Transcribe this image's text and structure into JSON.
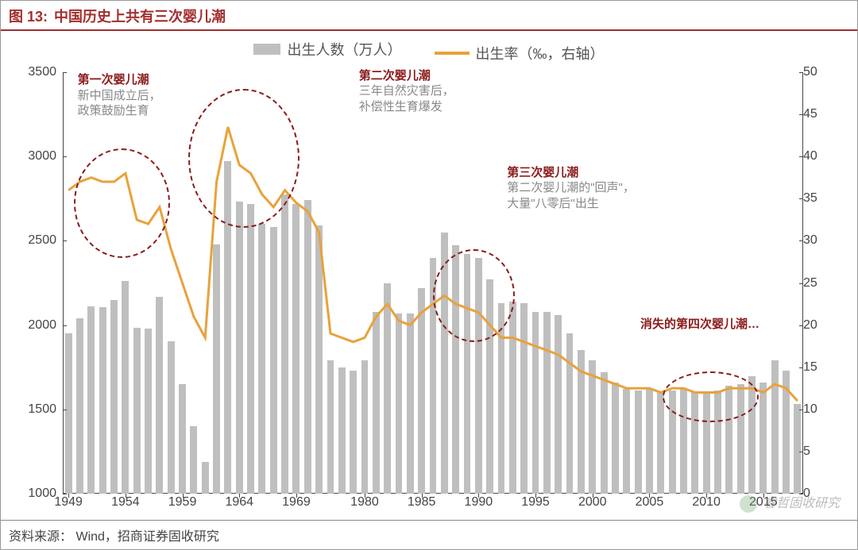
{
  "header": {
    "fig_label": "图 13:",
    "fig_title": "中国历史上共有三次婴儿潮"
  },
  "legend": {
    "bar_label": "出生人数（万人）",
    "line_label": "出生率（‰，右轴）"
  },
  "chart": {
    "type": "bar+line",
    "background_color": "#ffffff",
    "bar_color": "#bfbfbf",
    "line_color": "#e8a23a",
    "line_width": 3,
    "axis_color": "#444444",
    "y_left": {
      "min": 1000,
      "max": 3500,
      "step": 500
    },
    "y_right": {
      "min": 0,
      "max": 50,
      "step": 5
    },
    "x_start": 1949,
    "x_end": 2018,
    "x_ticks": [
      1949,
      1954,
      1959,
      1964,
      1969,
      1980,
      1985,
      1990,
      1995,
      2000,
      2005,
      2010,
      2015
    ],
    "years": [
      1949,
      1950,
      1951,
      1952,
      1953,
      1954,
      1955,
      1956,
      1957,
      1958,
      1959,
      1960,
      1961,
      1962,
      1963,
      1964,
      1965,
      1966,
      1967,
      1968,
      1969,
      1970,
      1971,
      1977,
      1978,
      1979,
      1980,
      1981,
      1982,
      1983,
      1984,
      1985,
      1986,
      1987,
      1988,
      1989,
      1990,
      1991,
      1992,
      1993,
      1994,
      1995,
      1996,
      1997,
      1998,
      1999,
      2000,
      2001,
      2002,
      2003,
      2004,
      2005,
      2006,
      2007,
      2008,
      2009,
      2010,
      2011,
      2012,
      2013,
      2014,
      2015,
      2016,
      2017,
      2018
    ],
    "births": [
      1950,
      2042,
      2110,
      2105,
      2151,
      2260,
      1985,
      1980,
      2170,
      1905,
      1650,
      1402,
      1190,
      2480,
      2975,
      2735,
      2720,
      2600,
      2580,
      2775,
      2720,
      2740,
      2590,
      1790,
      1750,
      1730,
      1790,
      2080,
      2250,
      2070,
      2070,
      2220,
      2400,
      2550,
      2475,
      2420,
      2400,
      2270,
      2130,
      2140,
      2130,
      2080,
      2080,
      2060,
      1950,
      1850,
      1790,
      1720,
      1660,
      1620,
      1610,
      1625,
      1600,
      1610,
      1625,
      1605,
      1600,
      1610,
      1640,
      1650,
      1695,
      1660,
      1790,
      1730,
      1530
    ],
    "rates": [
      36,
      37,
      37.5,
      37,
      37,
      38,
      32.5,
      32,
      34,
      29,
      25,
      21,
      18.5,
      37,
      43.5,
      39,
      38,
      35.5,
      34,
      36,
      34.5,
      33.5,
      31,
      19,
      18.5,
      18,
      18.5,
      21,
      22.5,
      20.5,
      20,
      21.5,
      22.5,
      23.5,
      22.5,
      22,
      21.5,
      20,
      18.5,
      18.5,
      18,
      17.5,
      17,
      16.5,
      15.5,
      14.5,
      14,
      13.5,
      13,
      12.5,
      12.5,
      12.5,
      12,
      12.5,
      12.5,
      12,
      12,
      12,
      12.5,
      12.5,
      12.5,
      12,
      13,
      12.5,
      11
    ]
  },
  "annotations": {
    "a1": {
      "hd": "第一次婴儿潮",
      "l1": "新中国成立后，",
      "l2": "政策鼓励生育"
    },
    "a2": {
      "hd": "第二次婴儿潮",
      "l1": "三年自然灾害后，",
      "l2": "补偿性生育爆发"
    },
    "a3": {
      "hd": "第三次婴儿潮",
      "l1": "第二次婴儿潮的\"回声\"，",
      "l2": "大量\"八零后\"出生"
    },
    "a4": {
      "hd": "消失的第四次婴儿潮…"
    }
  },
  "source": {
    "label": "资料来源：",
    "text": "Wind，招商证券固收研究"
  },
  "watermark": "睿哲固收研究"
}
